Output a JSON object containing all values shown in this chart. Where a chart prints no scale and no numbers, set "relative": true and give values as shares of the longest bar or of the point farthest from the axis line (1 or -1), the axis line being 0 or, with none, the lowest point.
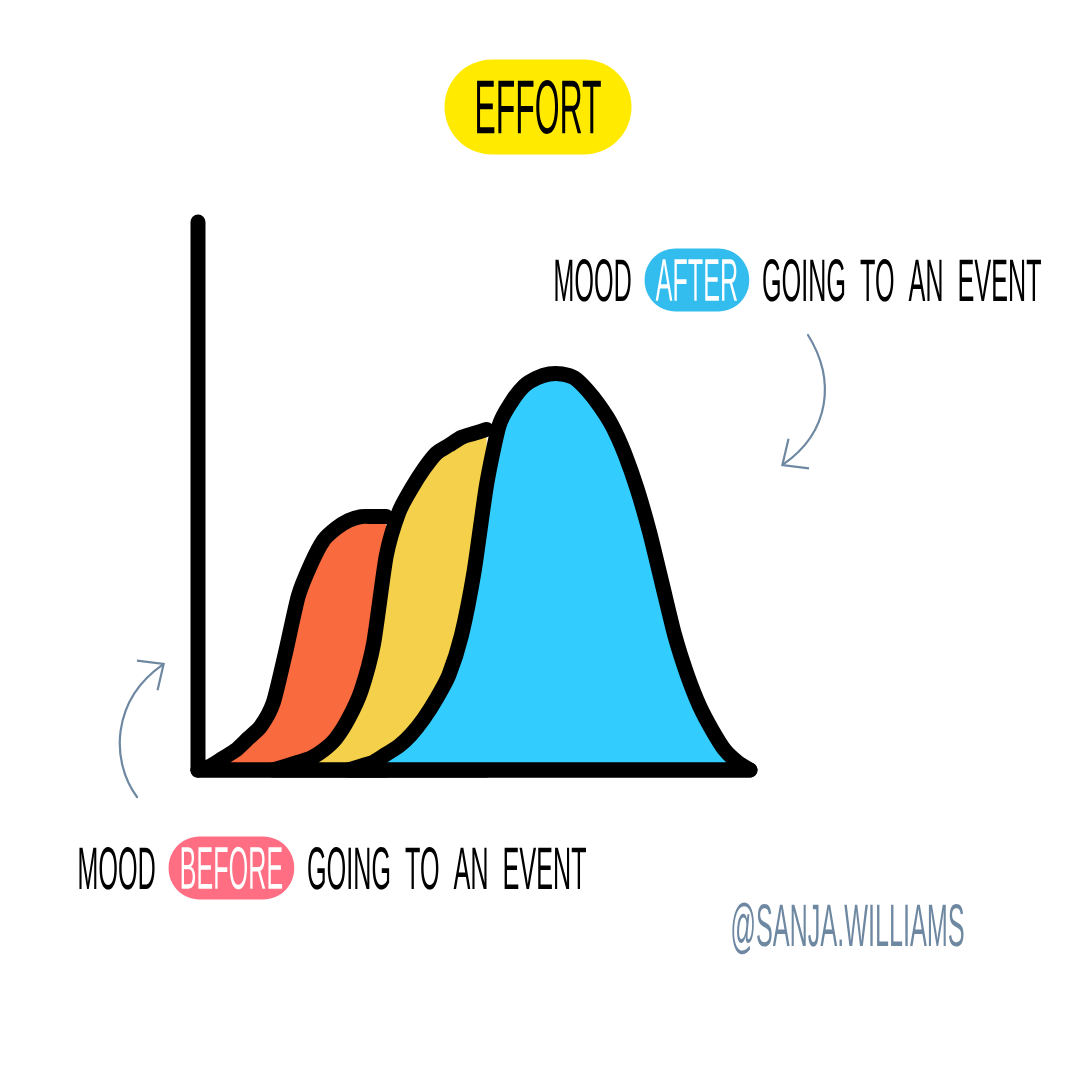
{
  "chart_data": {
    "type": "area",
    "title": "EFFORT",
    "relative": true,
    "categories": [
      null,
      null,
      null,
      null,
      null,
      null,
      null,
      null,
      null,
      null,
      null,
      null,
      null,
      null,
      null,
      null,
      null,
      null,
      null,
      null,
      null,
      null,
      null,
      null,
      null,
      null,
      null,
      null,
      null,
      null,
      null,
      null,
      null,
      null,
      null,
      null,
      null,
      null,
      null,
      null,
      null,
      null,
      null,
      null,
      null
    ],
    "series": [
      {
        "color": "#f96a3e",
        "values": [
          0,
          0.01,
          0.03,
          0.05,
          0.08,
          0.11,
          0.17,
          0.3,
          0.44,
          0.52,
          0.58,
          0.61,
          0.63,
          0.64,
          0.64,
          0.64,
          null,
          null,
          null,
          null,
          null,
          null,
          null,
          null,
          null,
          null,
          null,
          null,
          null,
          null,
          null,
          null,
          null,
          null,
          null,
          null,
          null,
          null,
          null,
          null,
          null,
          null,
          null,
          null,
          null
        ]
      },
      {
        "color": "#f5d04a",
        "values": [
          null,
          null,
          null,
          null,
          null,
          null,
          0,
          0.01,
          0.02,
          0.03,
          0.05,
          0.08,
          0.13,
          0.2,
          0.32,
          0.54,
          0.65,
          0.71,
          0.76,
          0.8,
          0.82,
          0.84,
          0.85,
          0.86,
          null,
          null,
          null,
          null,
          null,
          null,
          null,
          null,
          null,
          null,
          null,
          null,
          null,
          null,
          null,
          null,
          null,
          null,
          null,
          null,
          null
        ]
      },
      {
        "color": "#33ccff",
        "values": [
          null,
          null,
          null,
          null,
          null,
          null,
          null,
          null,
          null,
          null,
          null,
          null,
          0,
          0.01,
          0.02,
          0.04,
          0.06,
          0.09,
          0.13,
          0.18,
          0.24,
          0.34,
          0.5,
          0.72,
          0.87,
          0.93,
          0.97,
          0.99,
          1,
          1,
          0.99,
          0.96,
          0.92,
          0.87,
          0.8,
          0.71,
          0.6,
          0.47,
          0.34,
          0.24,
          0.16,
          0.1,
          0.05,
          0.02,
          0
        ]
      }
    ],
    "annotations": [
      "MOOD",
      "AFTER",
      "GOING TO AN EVENT",
      "MOOD",
      "BEFORE",
      "GOING TO AN EVENT",
      "@SANJA.WILLIAMS"
    ]
  }
}
